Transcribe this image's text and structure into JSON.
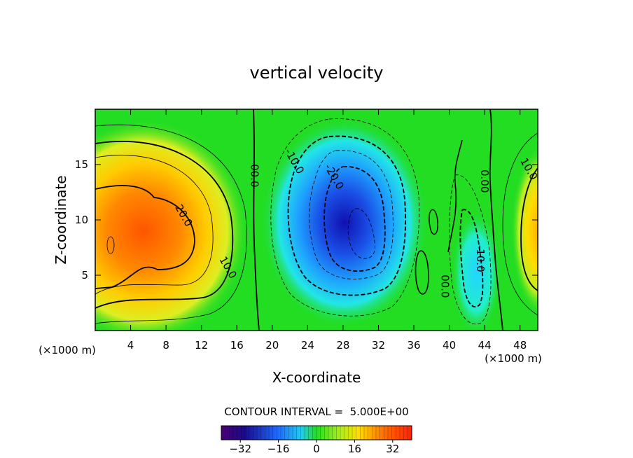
{
  "chart_data": {
    "type": "heatmap",
    "title": "vertical velocity",
    "xlabel": "X-coordinate",
    "ylabel": "Z-coordinate",
    "x_unit_label": "(×1000 m)",
    "z_unit_label": "(×1000 m)",
    "xlim": [
      0,
      50
    ],
    "ylim": [
      0,
      20
    ],
    "x_ticks": [
      4,
      8,
      12,
      16,
      20,
      24,
      28,
      32,
      36,
      40,
      44,
      48
    ],
    "y_ticks": [
      5,
      10,
      15
    ],
    "contour_interval_text": "CONTOUR INTERVAL =  5.000E+00",
    "contour_interval": 5.0,
    "contour_labels": [
      {
        "text": "20.0",
        "x": 10.0,
        "z": 10.4
      },
      {
        "text": "10.0",
        "x": 15.0,
        "z": 5.7
      },
      {
        "text": "00.0",
        "x": 18.0,
        "z": 14.0
      },
      {
        "text": "-10.0",
        "x": 22.5,
        "z": 15.3
      },
      {
        "text": "-20.0",
        "x": 27.0,
        "z": 13.9
      },
      {
        "text": "0.00",
        "x": 44.0,
        "z": 13.5
      },
      {
        "text": "10.0",
        "x": 49.0,
        "z": 14.6
      },
      {
        "text": "-10.0",
        "x": 43.5,
        "z": 6.5
      },
      {
        "text": "00.0",
        "x": 39.5,
        "z": 4.0
      }
    ],
    "field_features": [
      {
        "name": "updraft-west",
        "x": 2.5,
        "z": 9.0,
        "peak": 25
      },
      {
        "name": "downdraft-center",
        "x": 29.5,
        "z": 9.0,
        "peak": -32
      },
      {
        "name": "downdraft-east",
        "x": 43.0,
        "z": 5.5,
        "peak": -13
      },
      {
        "name": "updraft-east-edge",
        "x": 50.0,
        "z": 9.0,
        "peak": 22
      }
    ],
    "colorbar": {
      "range": [
        -40,
        40
      ],
      "ticks": [
        -32,
        -16,
        0,
        16,
        32
      ],
      "tick_labels": [
        "−32",
        "−16",
        "0",
        "16",
        "32"
      ]
    },
    "colors": {
      "neg_max": "#1a0a8c",
      "neg_mid": "#1e90ff",
      "zero": "#22dd22",
      "pos_mid": "#ffdd00",
      "pos_max": "#ff3300"
    }
  }
}
